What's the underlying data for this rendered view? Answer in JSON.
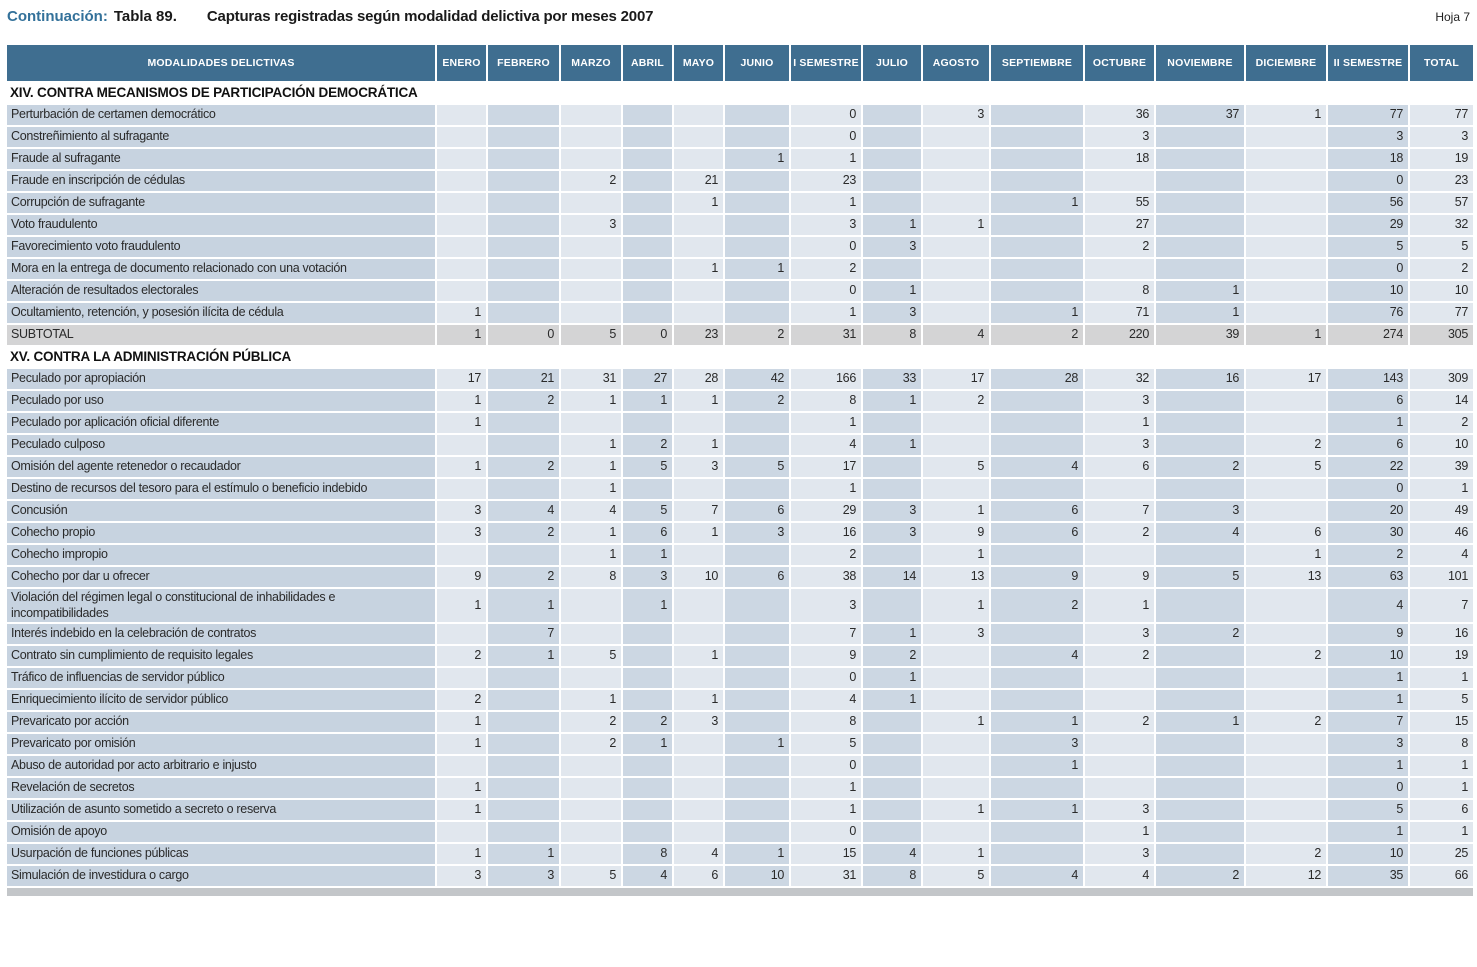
{
  "page": {
    "title_prefix": "Continuación:",
    "title_table": "Tabla 89.",
    "title_main": "Capturas registradas según modalidad delictiva por meses 2007",
    "sheet": "Hoja 7"
  },
  "colors": {
    "header_bg": "#3f6e90",
    "label_column_bg": "#c7d3e0",
    "column_light_bg": "#e1e7ee",
    "column_dark_bg": "#ccd7e3",
    "subtotal_bg": "#d4d4d5",
    "title_accent": "#33719a"
  },
  "table": {
    "columns": [
      "MODALIDADES DELICTIVAS",
      "ENERO",
      "FEBRERO",
      "MARZO",
      "ABRIL",
      "MAYO",
      "JUNIO",
      "I SEMESTRE",
      "JULIO",
      "AGOSTO",
      "SEPTIEMBRE",
      "OCTUBRE",
      "NOVIEMBRE",
      "DICIEMBRE",
      "II SEMESTRE",
      "TOTAL"
    ],
    "sections": [
      {
        "title": "XIV. CONTRA MECANISMOS DE PARTICIPACIÓN DEMOCRÁTICA",
        "rows": [
          {
            "label": "Perturbación de certamen democrático",
            "values": [
              "",
              "",
              "",
              "",
              "",
              "",
              "0",
              "",
              "3",
              "",
              "36",
              "37",
              "1",
              "77",
              "77"
            ]
          },
          {
            "label": "Constreñimiento al sufragante",
            "values": [
              "",
              "",
              "",
              "",
              "",
              "",
              "0",
              "",
              "",
              "",
              "3",
              "",
              "",
              "3",
              "3"
            ]
          },
          {
            "label": "Fraude al sufragante",
            "values": [
              "",
              "",
              "",
              "",
              "",
              "1",
              "1",
              "",
              "",
              "",
              "18",
              "",
              "",
              "18",
              "19"
            ]
          },
          {
            "label": "Fraude en inscripción de cédulas",
            "values": [
              "",
              "",
              "2",
              "",
              "21",
              "",
              "23",
              "",
              "",
              "",
              "",
              "",
              "",
              "0",
              "23"
            ]
          },
          {
            "label": "Corrupción de sufragante",
            "values": [
              "",
              "",
              "",
              "",
              "1",
              "",
              "1",
              "",
              "",
              "1",
              "55",
              "",
              "",
              "56",
              "57"
            ]
          },
          {
            "label": "Voto fraudulento",
            "values": [
              "",
              "",
              "3",
              "",
              "",
              "",
              "3",
              "1",
              "1",
              "",
              "27",
              "",
              "",
              "29",
              "32"
            ]
          },
          {
            "label": "Favorecimiento voto fraudulento",
            "values": [
              "",
              "",
              "",
              "",
              "",
              "",
              "0",
              "3",
              "",
              "",
              "2",
              "",
              "",
              "5",
              "5"
            ]
          },
          {
            "label": "Mora en la entrega de documento relacionado con una votación",
            "values": [
              "",
              "",
              "",
              "",
              "1",
              "1",
              "2",
              "",
              "",
              "",
              "",
              "",
              "",
              "0",
              "2"
            ]
          },
          {
            "label": "Alteración de resultados electorales",
            "values": [
              "",
              "",
              "",
              "",
              "",
              "",
              "0",
              "1",
              "",
              "",
              "8",
              "1",
              "",
              "10",
              "10"
            ]
          },
          {
            "label": "Ocultamiento, retención, y posesión ilícita de cédula",
            "values": [
              "1",
              "",
              "",
              "",
              "",
              "",
              "1",
              "3",
              "",
              "1",
              "71",
              "1",
              "",
              "76",
              "77"
            ]
          }
        ],
        "subtotal": {
          "label": "SUBTOTAL",
          "values": [
            "1",
            "0",
            "5",
            "0",
            "23",
            "2",
            "31",
            "8",
            "4",
            "2",
            "220",
            "39",
            "1",
            "274",
            "305"
          ]
        }
      },
      {
        "title": "XV. CONTRA LA ADMINISTRACIÓN PÚBLICA",
        "rows": [
          {
            "label": "Peculado por apropiación",
            "values": [
              "17",
              "21",
              "31",
              "27",
              "28",
              "42",
              "166",
              "33",
              "17",
              "28",
              "32",
              "16",
              "17",
              "143",
              "309"
            ]
          },
          {
            "label": "Peculado por uso",
            "values": [
              "1",
              "2",
              "1",
              "1",
              "1",
              "2",
              "8",
              "1",
              "2",
              "",
              "3",
              "",
              "",
              "6",
              "14"
            ]
          },
          {
            "label": "Peculado por aplicación oficial diferente",
            "values": [
              "1",
              "",
              "",
              "",
              "",
              "",
              "1",
              "",
              "",
              "",
              "1",
              "",
              "",
              "1",
              "2"
            ]
          },
          {
            "label": "Peculado culposo",
            "values": [
              "",
              "",
              "1",
              "2",
              "1",
              "",
              "4",
              "1",
              "",
              "",
              "3",
              "",
              "2",
              "6",
              "10"
            ]
          },
          {
            "label": "Omisión del agente retenedor o recaudador",
            "values": [
              "1",
              "2",
              "1",
              "5",
              "3",
              "5",
              "17",
              "",
              "5",
              "4",
              "6",
              "2",
              "5",
              "22",
              "39"
            ]
          },
          {
            "label": "Destino de recursos del tesoro para el estímulo o beneficio indebido",
            "values": [
              "",
              "",
              "1",
              "",
              "",
              "",
              "1",
              "",
              "",
              "",
              "",
              "",
              "",
              "0",
              "1"
            ]
          },
          {
            "label": "Concusión",
            "values": [
              "3",
              "4",
              "4",
              "5",
              "7",
              "6",
              "29",
              "3",
              "1",
              "6",
              "7",
              "3",
              "",
              "20",
              "49"
            ]
          },
          {
            "label": "Cohecho propio",
            "values": [
              "3",
              "2",
              "1",
              "6",
              "1",
              "3",
              "16",
              "3",
              "9",
              "6",
              "2",
              "4",
              "6",
              "30",
              "46"
            ]
          },
          {
            "label": "Cohecho impropio",
            "values": [
              "",
              "",
              "1",
              "1",
              "",
              "",
              "2",
              "",
              "1",
              "",
              "",
              "",
              "1",
              "2",
              "4"
            ]
          },
          {
            "label": "Cohecho por dar u ofrecer",
            "values": [
              "9",
              "2",
              "8",
              "3",
              "10",
              "6",
              "38",
              "14",
              "13",
              "9",
              "9",
              "5",
              "13",
              "63",
              "101"
            ]
          },
          {
            "label": "Violación del régimen legal o constitucional de inhabilidades e incompatibilidades",
            "values": [
              "1",
              "1",
              "",
              "1",
              "",
              "",
              "3",
              "",
              "1",
              "2",
              "1",
              "",
              "",
              "4",
              "7"
            ]
          },
          {
            "label": "Interés indebido en la celebración de contratos",
            "values": [
              "",
              "7",
              "",
              "",
              "",
              "",
              "7",
              "1",
              "3",
              "",
              "3",
              "2",
              "",
              "9",
              "16"
            ]
          },
          {
            "label": "Contrato sin cumplimiento de requisito legales",
            "values": [
              "2",
              "1",
              "5",
              "",
              "1",
              "",
              "9",
              "2",
              "",
              "4",
              "2",
              "",
              "2",
              "10",
              "19"
            ]
          },
          {
            "label": "Tráfico de influencias de servidor público",
            "values": [
              "",
              "",
              "",
              "",
              "",
              "",
              "0",
              "1",
              "",
              "",
              "",
              "",
              "",
              "1",
              "1"
            ]
          },
          {
            "label": "Enriquecimiento ilícito de servidor público",
            "values": [
              "2",
              "",
              "1",
              "",
              "1",
              "",
              "4",
              "1",
              "",
              "",
              "",
              "",
              "",
              "1",
              "5"
            ]
          },
          {
            "label": "Prevaricato por acción",
            "values": [
              "1",
              "",
              "2",
              "2",
              "3",
              "",
              "8",
              "",
              "1",
              "1",
              "2",
              "1",
              "2",
              "7",
              "15"
            ]
          },
          {
            "label": "Prevaricato por omisión",
            "values": [
              "1",
              "",
              "2",
              "1",
              "",
              "1",
              "5",
              "",
              "",
              "3",
              "",
              "",
              "",
              "3",
              "8"
            ]
          },
          {
            "label": "Abuso de autoridad por acto arbitrario e injusto",
            "values": [
              "",
              "",
              "",
              "",
              "",
              "",
              "0",
              "",
              "",
              "1",
              "",
              "",
              "",
              "1",
              "1"
            ]
          },
          {
            "label": "Revelación de secretos",
            "values": [
              "1",
              "",
              "",
              "",
              "",
              "",
              "1",
              "",
              "",
              "",
              "",
              "",
              "",
              "0",
              "1"
            ]
          },
          {
            "label": "Utilización de asunto sometido a secreto o reserva",
            "values": [
              "1",
              "",
              "",
              "",
              "",
              "",
              "1",
              "",
              "1",
              "1",
              "3",
              "",
              "",
              "5",
              "6"
            ]
          },
          {
            "label": "Omisión de apoyo",
            "values": [
              "",
              "",
              "",
              "",
              "",
              "",
              "0",
              "",
              "",
              "",
              "1",
              "",
              "",
              "1",
              "1"
            ]
          },
          {
            "label": "Usurpación de funciones públicas",
            "values": [
              "1",
              "1",
              "",
              "8",
              "4",
              "1",
              "15",
              "4",
              "1",
              "",
              "3",
              "",
              "2",
              "10",
              "25"
            ]
          },
          {
            "label": "Simulación de investidura o cargo",
            "values": [
              "3",
              "3",
              "5",
              "4",
              "6",
              "10",
              "31",
              "8",
              "5",
              "4",
              "4",
              "2",
              "12",
              "35",
              "66"
            ]
          }
        ],
        "subtotal": null
      }
    ]
  }
}
